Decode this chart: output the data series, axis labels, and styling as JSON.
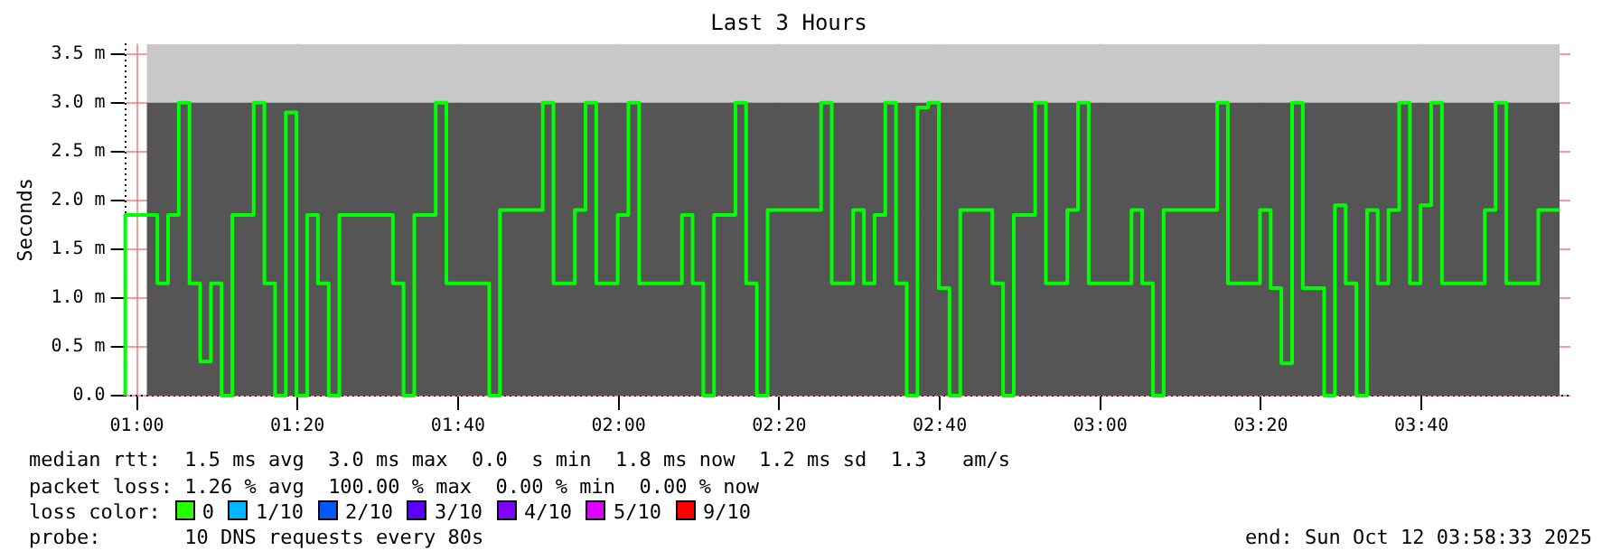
{
  "chart_data": {
    "type": "step",
    "title": "Last 3 Hours",
    "ylabel": "Seconds",
    "xlim": [
      0.9758,
      3.9758
    ],
    "xticks": [
      {
        "value": 1,
        "label": "01:00"
      },
      {
        "value": 1.3333,
        "label": "01:20"
      },
      {
        "value": 1.6667,
        "label": "01:40"
      },
      {
        "value": 2,
        "label": "02:00"
      },
      {
        "value": 2.3333,
        "label": "02:20"
      },
      {
        "value": 2.6667,
        "label": "02:40"
      },
      {
        "value": 3,
        "label": "03:00"
      },
      {
        "value": 3.3333,
        "label": "03:20"
      },
      {
        "value": 3.6667,
        "label": "03:40"
      }
    ],
    "ylim": [
      0,
      3.6
    ],
    "yticks": [
      {
        "value": 0,
        "label": "0.0"
      },
      {
        "value": 0.5,
        "label": "0.5 m"
      },
      {
        "value": 1,
        "label": "1.0 m"
      },
      {
        "value": 1.5,
        "label": "1.5 m"
      },
      {
        "value": 2,
        "label": "2.0 m"
      },
      {
        "value": 2.5,
        "label": "2.5 m"
      },
      {
        "value": 3,
        "label": "3.0 m"
      },
      {
        "value": 3.5,
        "label": "3.5 m"
      }
    ],
    "grid": true,
    "legend": false,
    "stacked": true,
    "marker": "none",
    "line_style": "solid",
    "series": [
      {
        "type": "area",
        "color": "#555555",
        "x": [
          1.0203,
          3.9536
        ],
        "values": [
          3.0,
          3.0
        ]
      },
      {
        "type": "area",
        "color": "#c8c8c8",
        "x": [
          1.0203,
          3.9536
        ],
        "values": [
          0.6,
          0.6
        ]
      },
      {
        "type": "step",
        "color": "#00ff00",
        "x": [
          0.9758,
          1.0425,
          1.0647,
          1.0869,
          1.1092,
          1.1314,
          1.1536,
          1.1758,
          1.1981,
          1.2425,
          1.2647,
          1.2869,
          1.3092,
          1.3314,
          1.3536,
          1.3758,
          1.3981,
          1.4203,
          1.5314,
          1.5536,
          1.5758,
          1.6203,
          1.6425,
          1.7314,
          1.7536,
          1.8425,
          1.8647,
          1.9092,
          1.9314,
          1.9536,
          1.9981,
          2.0203,
          2.0425,
          2.1314,
          2.1536,
          2.1758,
          2.1981,
          2.2425,
          2.2647,
          2.2869,
          2.3092,
          2.4203,
          2.4425,
          2.4869,
          2.5092,
          2.5314,
          2.5536,
          2.5758,
          2.5981,
          2.6203,
          2.6425,
          2.6647,
          2.6869,
          2.7092,
          2.7758,
          2.7981,
          2.8203,
          2.8647,
          2.8869,
          2.9314,
          2.9536,
          2.9758,
          3.0647,
          3.0869,
          3.1092,
          3.1314,
          3.2425,
          3.2647,
          3.3314,
          3.3536,
          3.3758,
          3.3981,
          3.4203,
          3.4647,
          3.4869,
          3.5092,
          3.5314,
          3.5536,
          3.5758,
          3.5981,
          3.6203,
          3.6425,
          3.6647,
          3.6869,
          3.7092,
          3.7981,
          3.8203,
          3.8425,
          3.9092,
          3.9314,
          3.9536
        ],
        "values": [
          0,
          1.85,
          1.15,
          1.85,
          3.0,
          1.15,
          0.35,
          1.15,
          0,
          1.85,
          3.0,
          1.15,
          0,
          2.9,
          0,
          1.85,
          1.15,
          0,
          1.85,
          1.15,
          0,
          1.85,
          3.0,
          1.15,
          0,
          1.9,
          3.0,
          1.15,
          1.9,
          3.0,
          1.15,
          1.85,
          3.0,
          1.15,
          1.85,
          1.15,
          0,
          1.85,
          3.0,
          1.15,
          0,
          1.9,
          3.0,
          1.15,
          1.9,
          1.15,
          1.85,
          3.0,
          1.15,
          0,
          2.95,
          3.0,
          1.1,
          0,
          1.9,
          1.15,
          0,
          1.85,
          3.0,
          1.15,
          1.9,
          3.0,
          1.15,
          1.9,
          1.15,
          0,
          1.9,
          3.0,
          1.15,
          1.9,
          1.1,
          0.33,
          3.0,
          1.1,
          0,
          1.95,
          1.15,
          0,
          1.9,
          1.15,
          1.9,
          3.0,
          1.15,
          1.95,
          3.0,
          1.15,
          1.9,
          3.0,
          1.15,
          1.9,
          1.9
        ]
      }
    ],
    "annotations": [
      "median rtt:  1.5 ms avg  3.0 ms max  0.0  s min  1.8 ms now  1.2 ms sd  1.3   am/s",
      "packet loss: 1.26 % avg  100.00 % max  0.00 % min  0.00 % now",
      "loss color:",
      "0",
      "1/10",
      "2/10",
      "3/10",
      "4/10",
      "5/10",
      "9/10",
      "probe:       10 DNS requests every 80s",
      "end: Sun Oct 12 03:58:33 2025"
    ]
  }
}
